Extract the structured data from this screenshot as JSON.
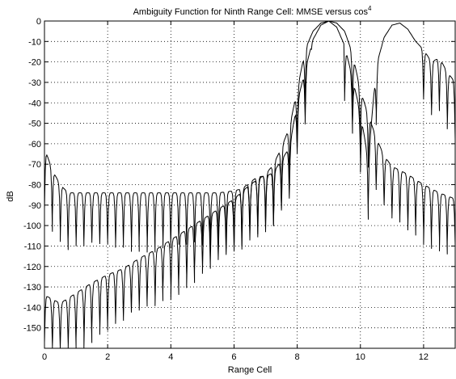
{
  "chart_data": {
    "type": "line",
    "title": "Ambiguity Function for Ninth Range Cell: MMSE versus cos",
    "title_superscript": "4",
    "xlabel": "Range Cell",
    "ylabel": "dB",
    "xlim": [
      0,
      13
    ],
    "ylim": [
      -160,
      0
    ],
    "x_ticks": [
      0,
      2,
      4,
      6,
      8,
      10,
      12
    ],
    "y_ticks": [
      0,
      -10,
      -20,
      -30,
      -40,
      -50,
      -60,
      -70,
      -80,
      -90,
      -100,
      -110,
      -120,
      -130,
      -140,
      -150
    ],
    "grid": true,
    "legend": "none",
    "line_color": "#000000",
    "series": [
      {
        "points": [
          [
            0.0,
            -62
          ],
          [
            0.25,
            -73
          ],
          [
            0.5,
            -80
          ],
          [
            0.75,
            -84
          ],
          [
            1.0,
            -84
          ],
          [
            1.5,
            -84
          ],
          [
            2.0,
            -84
          ],
          [
            2.5,
            -84
          ],
          [
            3.0,
            -84
          ],
          [
            3.5,
            -84
          ],
          [
            4.0,
            -84
          ],
          [
            4.5,
            -84
          ],
          [
            5.0,
            -84
          ],
          [
            5.5,
            -84
          ],
          [
            6.0,
            -83
          ],
          [
            6.25,
            -82
          ],
          [
            6.5,
            -79
          ],
          [
            6.75,
            -76
          ],
          [
            7.0,
            -76
          ],
          [
            7.25,
            -74
          ],
          [
            7.5,
            -68
          ],
          [
            7.75,
            -62
          ],
          [
            8.0,
            -40
          ],
          [
            8.25,
            -24
          ],
          [
            8.5,
            -9
          ],
          [
            8.75,
            -2
          ],
          [
            9.0,
            0
          ],
          [
            9.25,
            -1
          ],
          [
            9.5,
            -5
          ],
          [
            9.75,
            -16
          ],
          [
            10.0,
            -34
          ],
          [
            10.25,
            -46
          ],
          [
            10.5,
            -57
          ],
          [
            10.75,
            -66
          ],
          [
            11.0,
            -71
          ],
          [
            11.5,
            -75
          ],
          [
            12.0,
            -80
          ],
          [
            12.5,
            -84
          ],
          [
            13.0,
            -87
          ]
        ],
        "null_spacing": 0.25
      },
      {
        "points": [
          [
            0.0,
            -134
          ],
          [
            0.5,
            -138
          ],
          [
            1.0,
            -133
          ],
          [
            1.5,
            -128
          ],
          [
            2.0,
            -124
          ],
          [
            2.5,
            -121
          ],
          [
            3.0,
            -116
          ],
          [
            3.5,
            -112
          ],
          [
            4.0,
            -107
          ],
          [
            4.5,
            -102
          ],
          [
            5.0,
            -97
          ],
          [
            5.5,
            -92
          ],
          [
            6.0,
            -87
          ],
          [
            6.5,
            -80
          ],
          [
            7.0,
            -75
          ],
          [
            7.25,
            -70
          ],
          [
            7.5,
            -62
          ],
          [
            7.75,
            -52
          ],
          [
            8.0,
            -34
          ],
          [
            8.25,
            -14
          ],
          [
            8.5,
            -5
          ],
          [
            8.75,
            -1
          ],
          [
            9.0,
            0
          ],
          [
            9.25,
            -3
          ],
          [
            9.5,
            -12
          ],
          [
            9.75,
            -28
          ],
          [
            10.0,
            -45
          ],
          [
            10.25,
            -68
          ],
          [
            10.5,
            -22
          ],
          [
            10.75,
            -8
          ],
          [
            11.0,
            -2
          ],
          [
            11.25,
            -1
          ],
          [
            11.5,
            -4
          ],
          [
            11.75,
            -10
          ],
          [
            12.0,
            -14
          ],
          [
            12.25,
            -20
          ],
          [
            12.5,
            -18
          ],
          [
            12.75,
            -25
          ],
          [
            13.0,
            -30
          ]
        ],
        "null_spacing": 0.25
      }
    ]
  }
}
